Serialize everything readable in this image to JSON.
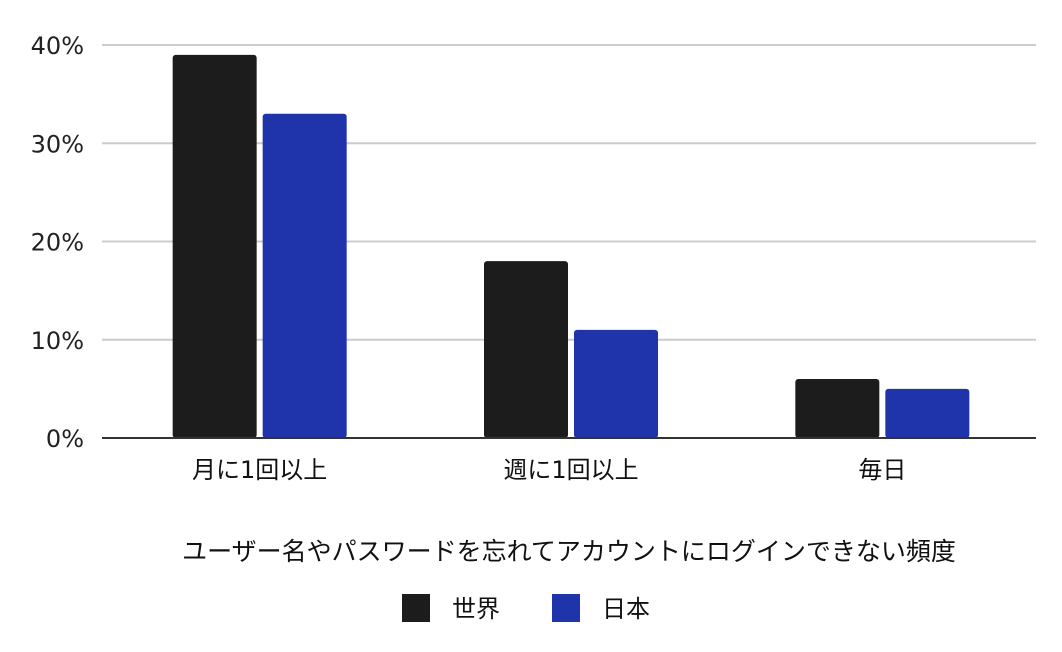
{
  "chart_data": {
    "type": "bar",
    "xlabel": "ユーザー名やパスワードを忘れてアカウントにログインできない頻度",
    "ylabel": "",
    "ylim": [
      0,
      40
    ],
    "y_ticks": [
      "0%",
      "10%",
      "20%",
      "30%",
      "40%"
    ],
    "y_tick_values": [
      0,
      10,
      20,
      30,
      40
    ],
    "categories": [
      "月に1回以上",
      "週に1回以上",
      "毎日"
    ],
    "series": [
      {
        "name": "世界",
        "values": [
          39,
          18,
          6
        ],
        "color": "#1c1c1c"
      },
      {
        "name": "日本",
        "values": [
          33,
          11,
          5
        ],
        "color": "#1f33ab"
      }
    ],
    "grid": true,
    "legend_position": "bottom"
  }
}
